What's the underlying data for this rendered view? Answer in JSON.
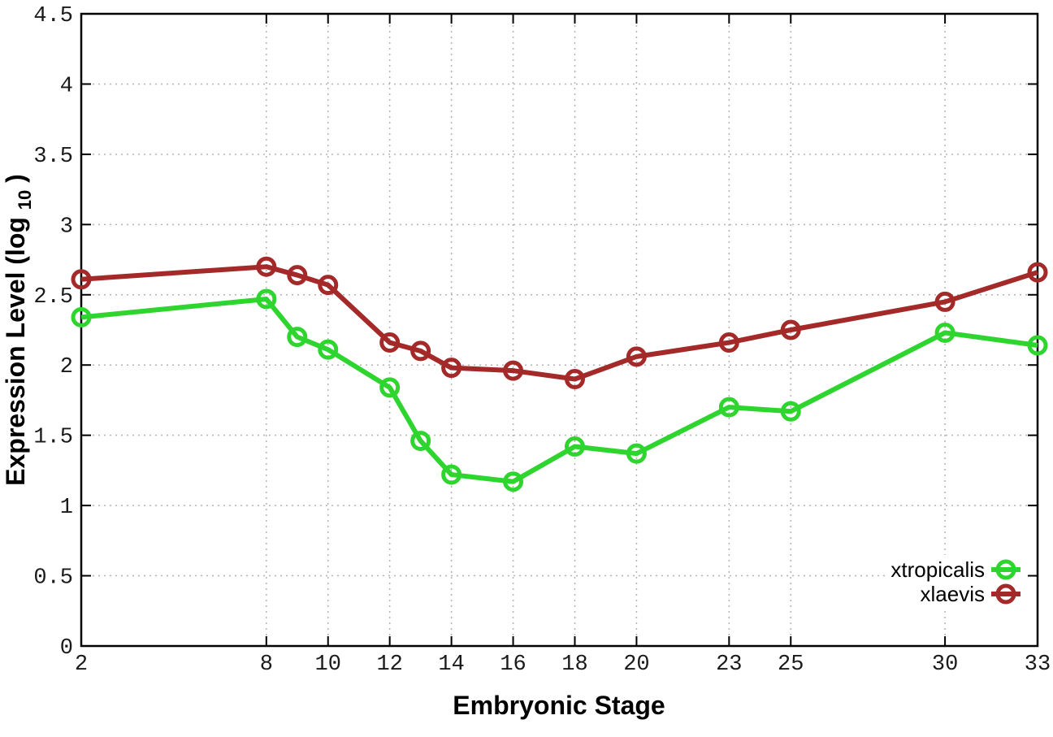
{
  "chart_data": {
    "type": "line",
    "title": "",
    "xlabel": "Embryonic Stage",
    "ylabel": "Expression Level (log10)",
    "ylabel_parts": [
      "Expression Level (log",
      "10",
      ")"
    ],
    "xlim": [
      2,
      33
    ],
    "ylim": [
      0,
      4.5
    ],
    "grid": true,
    "legend_position": "bottom-right-inside",
    "x_tick_values": [
      2,
      8,
      10,
      12,
      14,
      16,
      18,
      20,
      23,
      25,
      30,
      33
    ],
    "x_tick_labels": [
      "2",
      "8",
      "10",
      "12",
      "14",
      "16",
      "18",
      "20",
      "23",
      "25",
      "30",
      "33"
    ],
    "y_tick_values": [
      0,
      0.5,
      1,
      1.5,
      2,
      2.5,
      3,
      3.5,
      4,
      4.5
    ],
    "y_tick_labels": [
      "0",
      "0.5",
      "1",
      "1.5",
      "2",
      "2.5",
      "3",
      "3.5",
      "4",
      "4.5"
    ],
    "x": [
      2,
      8,
      9,
      10,
      12,
      13,
      14,
      16,
      18,
      20,
      23,
      25,
      30,
      33
    ],
    "series": [
      {
        "name": "xtropicalis",
        "color": "#2fd52f",
        "values": [
          2.34,
          2.47,
          2.2,
          2.11,
          1.84,
          1.46,
          1.22,
          1.17,
          1.42,
          1.37,
          1.7,
          1.67,
          2.23,
          2.14
        ]
      },
      {
        "name": "xlaevis",
        "color": "#a42a2a",
        "values": [
          2.61,
          2.7,
          2.64,
          2.57,
          2.16,
          2.1,
          1.98,
          1.96,
          1.9,
          2.06,
          2.16,
          2.25,
          2.45,
          2.66
        ]
      }
    ],
    "style": {
      "grid_color": "#b3b3b3",
      "axis_color": "#000000",
      "text_color": "#1a1a1a",
      "line_width": 6,
      "marker_radius": 10,
      "marker_stroke_width": 5
    }
  }
}
